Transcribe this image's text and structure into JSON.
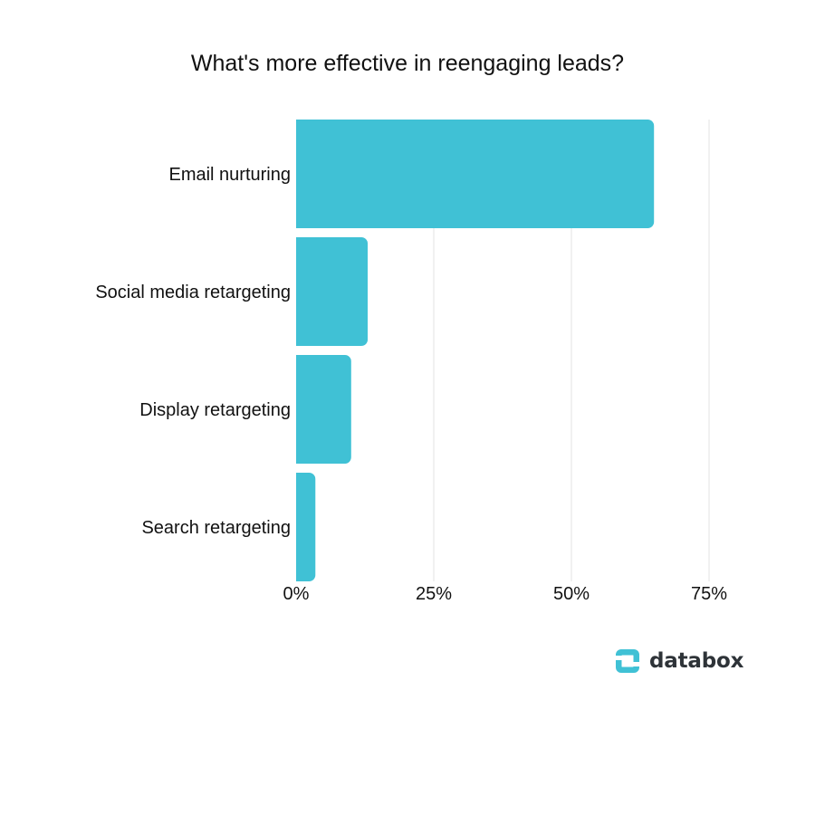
{
  "chart_data": {
    "type": "bar",
    "orientation": "horizontal",
    "title": "What's more effective in reengaging leads?",
    "categories": [
      "Email nurturing",
      "Social media retargeting",
      "Display retargeting",
      "Search retargeting"
    ],
    "values": [
      65,
      13,
      10,
      3.5
    ],
    "unit": "%",
    "xlim": [
      0,
      75
    ],
    "xticks": [
      0,
      25,
      50,
      75
    ],
    "xtick_labels": [
      "0%",
      "25%",
      "50%",
      "75%"
    ],
    "grid": true,
    "bar_color": "#40c1d5",
    "grid_color": "#e3e3e3"
  },
  "branding": {
    "logo_text": "databox",
    "logo_color": "#40c1d5"
  }
}
